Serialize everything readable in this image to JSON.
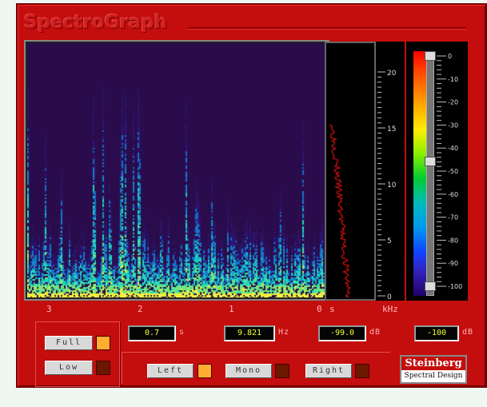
{
  "app": {
    "title": "SpectroGraph"
  },
  "spectrogram": {
    "time_labels": [
      "3",
      "2",
      "1",
      "0",
      "s"
    ],
    "freq_unit": "kHz",
    "khz_ticks": [
      "20",
      "15",
      "10",
      "5",
      "0"
    ],
    "db_ticks": [
      "0",
      "-10",
      "-20",
      "-30",
      "-40",
      "-50",
      "-60",
      "-70",
      "-80",
      "-90",
      "-100"
    ],
    "level_meter_fraction": 0.55
  },
  "resolution": {
    "full_label": "Full",
    "full_active": true,
    "low_label": "Low",
    "low_active": false
  },
  "readouts": {
    "time_value": "0.7",
    "time_unit": "s",
    "freq_value": "9.821",
    "freq_unit": "Hz",
    "level_value": "-99.0",
    "level_unit": "dB",
    "floor_value": "-100",
    "floor_unit": "dB"
  },
  "channels": {
    "left_label": "Left",
    "left_active": true,
    "mono_label": "Mono",
    "mono_active": false,
    "right_label": "Right",
    "right_active": false
  },
  "brand": {
    "name": "Steinberg",
    "tagline": "Spectral Design"
  },
  "colors": {
    "panel": "#c40d0d",
    "readout_text": "#f1ff33",
    "led_on": "#ffae30",
    "led_off": "#6a1800"
  }
}
